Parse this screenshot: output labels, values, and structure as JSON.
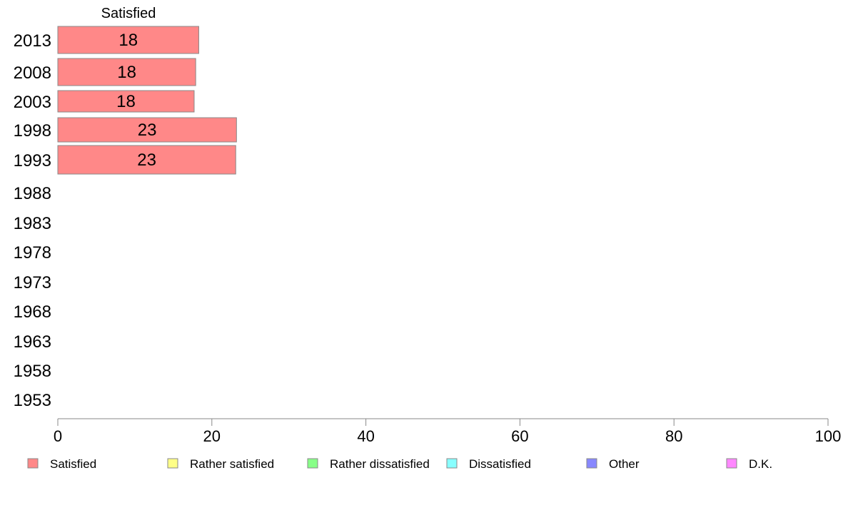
{
  "chart_data": {
    "type": "bar",
    "orientation": "horizontal",
    "stacked": true,
    "categories": [
      "2013",
      "2008",
      "2003",
      "1998",
      "1993",
      "1988",
      "1983",
      "1978",
      "1973",
      "1968",
      "1963",
      "1958",
      "1953"
    ],
    "series": [
      {
        "name": "Satisfied",
        "color": "#ff8888",
        "values": [
          18.3,
          17.9,
          17.7,
          23.2,
          23.1,
          null,
          null,
          null,
          null,
          null,
          null,
          null,
          null
        ]
      },
      {
        "name": "Rather satisfied",
        "color": "#ffff88",
        "values": [
          null,
          null,
          null,
          null,
          null,
          null,
          null,
          null,
          null,
          null,
          null,
          null,
          null
        ]
      },
      {
        "name": "Rather dissatisfied",
        "color": "#88ff88",
        "values": [
          null,
          null,
          null,
          null,
          null,
          null,
          null,
          null,
          null,
          null,
          null,
          null,
          null
        ]
      },
      {
        "name": "Dissatisfied",
        "color": "#88ffff",
        "values": [
          null,
          null,
          null,
          null,
          null,
          null,
          null,
          null,
          null,
          null,
          null,
          null,
          null
        ]
      },
      {
        "name": "Other",
        "color": "#8888ff",
        "values": [
          null,
          null,
          null,
          null,
          null,
          null,
          null,
          null,
          null,
          null,
          null,
          null,
          null
        ]
      },
      {
        "name": "D.K.",
        "color": "#ff88ff",
        "values": [
          null,
          null,
          null,
          null,
          null,
          null,
          null,
          null,
          null,
          null,
          null,
          null,
          null
        ]
      }
    ],
    "data_labels": [
      "18",
      "18",
      "18",
      "23",
      "23"
    ],
    "series_header": "Satisfied",
    "xlim": [
      0,
      100
    ],
    "xticks": [
      0,
      20,
      40,
      60,
      80,
      100
    ],
    "grid": false,
    "legend_position": "bottom"
  }
}
